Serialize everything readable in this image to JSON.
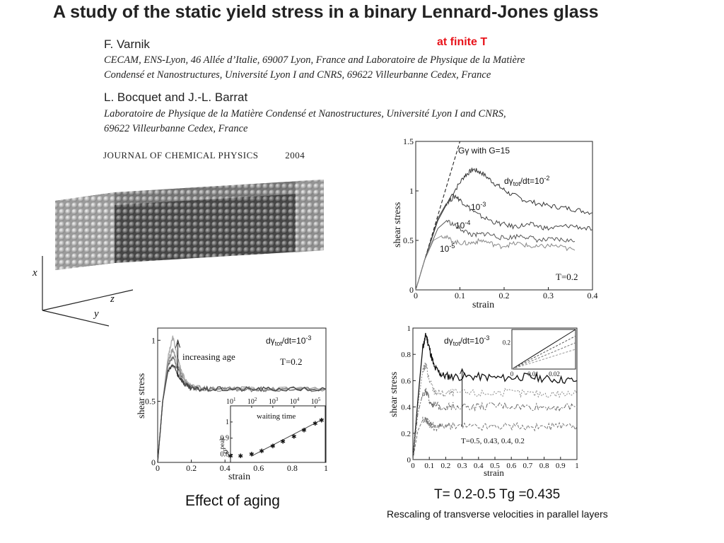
{
  "header": {
    "title": "A study of the static yield stress in a binary Lennard-Jones glass",
    "red_note": "at finite T",
    "author1": "F. Varnik",
    "affil1_line1": "CECAM, ENS-Lyon, 46 Allée d’Italie, 69007 Lyon, France and Laboratoire de Physique de la Matière",
    "affil1_line2": "Condensé et Nanostructures, Université Lyon I and CNRS, 69622 Villeurbanne Cedex, France",
    "author2": "L. Bocquet and J.-L. Barrat",
    "affil2_line1": "Laboratoire de Physique de la Matière Condensé et Nanostructures, Université Lyon I and CNRS,",
    "affil2_line2": "69622 Villeurbanne Cedex, France",
    "journal": "JOURNAL OF CHEMICAL PHYSICS",
    "year": "2004"
  },
  "simulation_box": {
    "axis_x": "x",
    "axis_y": "y",
    "axis_z": "z"
  },
  "captions": {
    "aging": "Effect of aging",
    "temperature": "T= 0.2-0.5 Tg =0.435",
    "rescaling": "Rescaling of transverse velocities in parallel layers"
  },
  "chart_data": [
    {
      "type": "line",
      "xlabel": "strain",
      "ylabel": "shear stress",
      "xlim": [
        0,
        0.4
      ],
      "ylim": [
        0,
        1.5
      ],
      "xticks": [
        "0",
        "0.1",
        "0.2",
        "0.3",
        "0.4"
      ],
      "yticks": [
        "0",
        "0.5",
        "1",
        "1.5"
      ],
      "annotation_T": "T=0.2",
      "elastic_label": "Gγ with G=15",
      "rate_label_prefix": "dγ",
      "rate_label_sub": "tot",
      "rate_label_suffix": "/dt=10",
      "rate_label_exp": "-2",
      "series": [
        {
          "name_base": "dγtot/dt=10",
          "name_exp": "-2",
          "x": [
            0,
            0.02,
            0.05,
            0.08,
            0.11,
            0.13,
            0.15,
            0.18,
            0.21,
            0.25,
            0.3,
            0.35,
            0.4
          ],
          "y": [
            0,
            0.3,
            0.7,
            0.95,
            1.15,
            1.22,
            1.18,
            1.07,
            0.98,
            0.9,
            0.85,
            0.82,
            0.78
          ]
        },
        {
          "name_base": "10",
          "name_exp": "-3",
          "x": [
            0,
            0.02,
            0.05,
            0.07,
            0.09,
            0.11,
            0.14,
            0.18,
            0.22,
            0.26,
            0.3,
            0.35,
            0.4
          ],
          "y": [
            0,
            0.3,
            0.72,
            0.88,
            0.95,
            0.87,
            0.76,
            0.68,
            0.64,
            0.66,
            0.62,
            0.65,
            0.61
          ]
        },
        {
          "name_base": "10",
          "name_exp": "-4",
          "x": [
            0,
            0.02,
            0.05,
            0.07,
            0.1,
            0.13,
            0.16,
            0.2,
            0.24,
            0.28,
            0.32,
            0.36
          ],
          "y": [
            0,
            0.3,
            0.62,
            0.7,
            0.62,
            0.55,
            0.57,
            0.52,
            0.55,
            0.5,
            0.51,
            0.49
          ]
        },
        {
          "name_base": "10",
          "name_exp": "-5",
          "x": [
            0,
            0.02,
            0.04,
            0.06,
            0.09,
            0.12,
            0.15,
            0.19,
            0.23,
            0.27,
            0.31,
            0.36
          ],
          "y": [
            0,
            0.3,
            0.5,
            0.55,
            0.48,
            0.47,
            0.5,
            0.44,
            0.47,
            0.43,
            0.45,
            0.4
          ]
        }
      ],
      "reference_line": {
        "name": "Gγ with G=15",
        "slope": 15
      }
    },
    {
      "type": "line",
      "xlabel": "strain",
      "ylabel": "shear stress",
      "xlim": [
        0,
        1
      ],
      "ylim": [
        0,
        1.1
      ],
      "xticks": [
        "0",
        "0.2",
        "0.4",
        "0.6",
        "0.8",
        "1"
      ],
      "yticks": [
        "0",
        "0.5",
        "1"
      ],
      "rate_label_prefix": "dγ",
      "rate_label_sub": "tot",
      "rate_label_suffix": "/dt=10",
      "rate_label_exp": "-3",
      "annotation_T": "T=0.2",
      "arrow_label": "increasing age",
      "series": [
        {
          "x": [
            0,
            0.03,
            0.06,
            0.09,
            0.12,
            0.16,
            0.2,
            0.3,
            0.5,
            0.7,
            1
          ],
          "y": [
            0,
            0.5,
            0.85,
            1.03,
            0.85,
            0.68,
            0.62,
            0.6,
            0.6,
            0.6,
            0.6
          ]
        },
        {
          "x": [
            0,
            0.03,
            0.06,
            0.09,
            0.12,
            0.16,
            0.2,
            0.3,
            0.5,
            0.7,
            1
          ],
          "y": [
            0,
            0.5,
            0.82,
            0.93,
            0.8,
            0.66,
            0.61,
            0.6,
            0.6,
            0.6,
            0.6
          ]
        },
        {
          "x": [
            0,
            0.03,
            0.06,
            0.09,
            0.12,
            0.16,
            0.2,
            0.3,
            0.5,
            0.7,
            1
          ],
          "y": [
            0,
            0.5,
            0.78,
            0.86,
            0.76,
            0.65,
            0.61,
            0.6,
            0.6,
            0.6,
            0.6
          ]
        },
        {
          "x": [
            0,
            0.03,
            0.06,
            0.09,
            0.12,
            0.16,
            0.2,
            0.3,
            0.5,
            0.7,
            1
          ],
          "y": [
            0,
            0.5,
            0.74,
            0.8,
            0.72,
            0.64,
            0.6,
            0.6,
            0.6,
            0.6,
            0.6
          ]
        }
      ],
      "inset": {
        "type": "scatter",
        "xlabel": "waiting time",
        "ylabel": "σ",
        "ylabel_sup": "peak",
        "x_scale": "log",
        "xlim": [
          10,
          300000
        ],
        "ylim": [
          0.75,
          1.1
        ],
        "xtick_base": "10",
        "xtick_exps": [
          "1",
          "2",
          "3",
          "4",
          "5"
        ],
        "yticks": [
          "0.8",
          "0.9",
          "1"
        ],
        "x": [
          10,
          30,
          100,
          300,
          1000,
          3000,
          10000,
          30000,
          100000,
          200000
        ],
        "y": [
          0.79,
          0.79,
          0.8,
          0.82,
          0.85,
          0.88,
          0.91,
          0.95,
          0.99,
          1.01
        ],
        "fit": {
          "x": [
            100,
            250000
          ],
          "y": [
            0.79,
            1.02
          ]
        }
      }
    },
    {
      "type": "line",
      "xlabel": "strain",
      "ylabel": "shear stress",
      "xlim": [
        0,
        1
      ],
      "ylim": [
        0,
        1
      ],
      "xticks": [
        "0",
        "0.1",
        "0.2",
        "0.3",
        "0.4",
        "0.5",
        "0.6",
        "0.7",
        "0.8",
        "0.9",
        "1"
      ],
      "yticks": [
        "0",
        "0.2",
        "0.4",
        "0.6",
        "0.8",
        "1"
      ],
      "rate_label_prefix": "dγ",
      "rate_label_sub": "tot",
      "rate_label_suffix": "/dt=10",
      "rate_label_exp": "-3",
      "arrow_label": "T=0.5, 0.43, 0.4, 0.2",
      "series": [
        {
          "x": [
            0,
            0.03,
            0.06,
            0.08,
            0.1,
            0.13,
            0.18,
            0.25,
            0.4,
            0.55,
            0.7,
            0.85,
            1
          ],
          "y": [
            0,
            0.45,
            0.85,
            0.95,
            0.85,
            0.7,
            0.64,
            0.63,
            0.63,
            0.62,
            0.63,
            0.61,
            0.6
          ]
        },
        {
          "x": [
            0,
            0.03,
            0.06,
            0.08,
            0.1,
            0.13,
            0.18,
            0.25,
            0.4,
            0.55,
            0.7,
            0.85,
            1
          ],
          "y": [
            0,
            0.4,
            0.68,
            0.72,
            0.6,
            0.52,
            0.5,
            0.51,
            0.5,
            0.51,
            0.5,
            0.5,
            0.5
          ]
        },
        {
          "x": [
            0,
            0.03,
            0.06,
            0.08,
            0.1,
            0.13,
            0.18,
            0.25,
            0.4,
            0.55,
            0.7,
            0.85,
            1
          ],
          "y": [
            0,
            0.35,
            0.5,
            0.52,
            0.45,
            0.41,
            0.4,
            0.41,
            0.4,
            0.41,
            0.4,
            0.4,
            0.4
          ]
        },
        {
          "x": [
            0,
            0.03,
            0.06,
            0.08,
            0.1,
            0.13,
            0.18,
            0.25,
            0.4,
            0.55,
            0.7,
            0.85,
            1
          ],
          "y": [
            0,
            0.22,
            0.3,
            0.3,
            0.27,
            0.25,
            0.25,
            0.26,
            0.25,
            0.26,
            0.25,
            0.25,
            0.25
          ]
        }
      ],
      "inset": {
        "type": "line",
        "xlim": [
          0,
          0.03
        ],
        "ylim": [
          0,
          0.3
        ],
        "xticks": [
          "0",
          "0.01",
          "0.02"
        ],
        "yticks": [
          "0.2"
        ],
        "series": [
          {
            "x": [
              0,
              0.03
            ],
            "y": [
              0,
              0.3
            ]
          },
          {
            "x": [
              0,
              0.03
            ],
            "y": [
              0,
              0.25
            ]
          },
          {
            "x": [
              0,
              0.03
            ],
            "y": [
              0,
              0.2
            ]
          },
          {
            "x": [
              0,
              0.03
            ],
            "y": [
              0,
              0.15
            ]
          }
        ]
      }
    }
  ]
}
